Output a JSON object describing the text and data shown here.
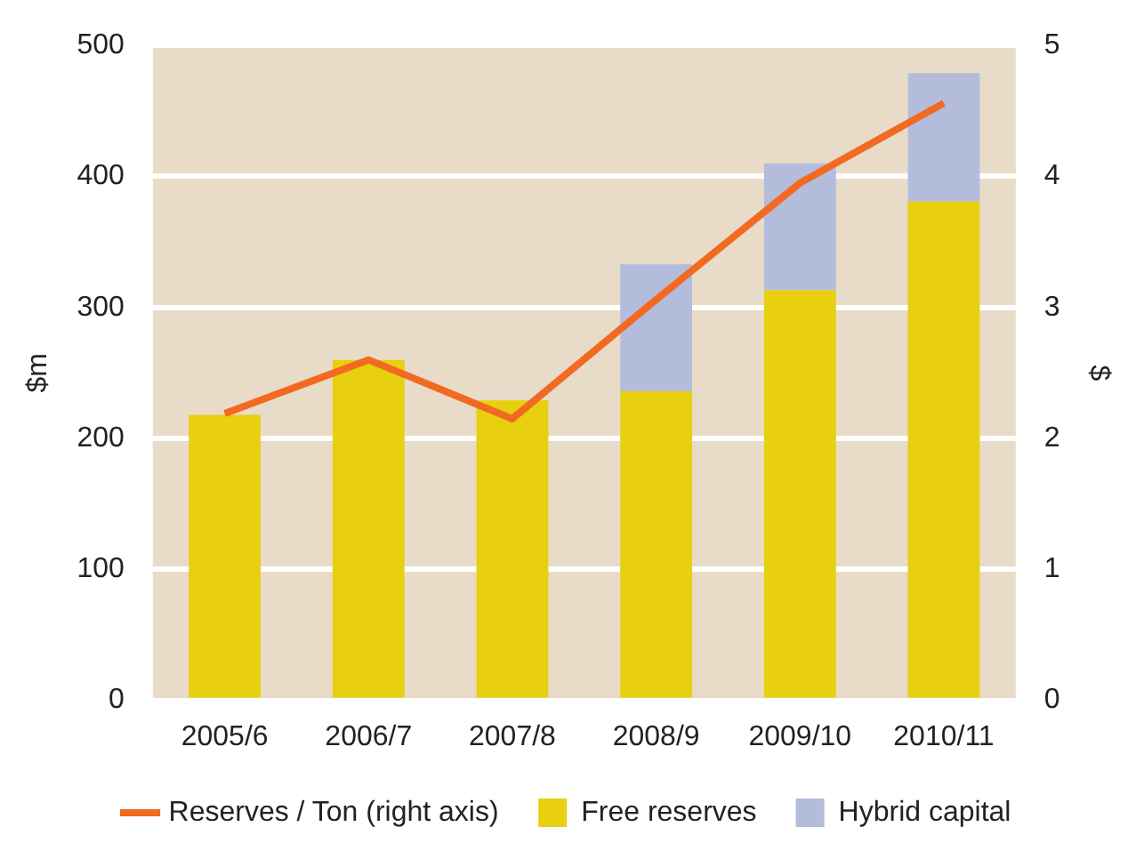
{
  "chart_data": {
    "type": "bar",
    "stacked": true,
    "categories": [
      "2005/6",
      "2006/7",
      "2007/8",
      "2008/9",
      "2009/10",
      "2010/11"
    ],
    "series": [
      {
        "name": "Free reserves",
        "color": "#e8cf10",
        "values": [
          218,
          260,
          229,
          236,
          313,
          381
        ]
      },
      {
        "name": "Hybrid capital",
        "color": "#b4bcdc",
        "values": [
          0,
          0,
          0,
          97,
          97,
          98
        ]
      },
      {
        "name": "Reserves / Ton (right axis)",
        "type": "line",
        "axis": "y2",
        "color": "#f26a21",
        "marker": "none",
        "values": [
          2.19,
          2.6,
          2.15,
          3.06,
          3.95,
          4.56
        ]
      }
    ],
    "ylabel": "$m",
    "y2label": "$",
    "ylim": [
      0,
      500
    ],
    "yticks": [
      0,
      100,
      200,
      300,
      400,
      500
    ],
    "y2lim": [
      0,
      5
    ],
    "y2ticks": [
      0,
      1,
      2,
      3,
      4,
      5
    ],
    "grid": "y",
    "legend": "bottom"
  }
}
